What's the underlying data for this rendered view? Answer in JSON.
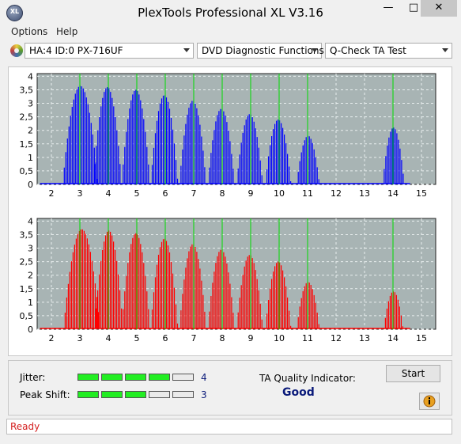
{
  "window": {
    "title": "PlexTools Professional XL V3.16",
    "icon_text": "XL",
    "controls": [
      "minimize-icon",
      "maximize-icon",
      "close-icon"
    ]
  },
  "menu": [
    "Options",
    "Help"
  ],
  "selectors": {
    "drive": "HA:4 ID:0  PX-716UF",
    "function": "DVD Diagnostic Functions",
    "test": "Q-Check TA Test"
  },
  "charts_colors": {
    "upper": "#0000ff",
    "lower": "#ff0000",
    "peak_lines": "#00dd00",
    "plot_bg": "#a8b4b4"
  },
  "chart_data": [
    {
      "type": "bar",
      "name": "upper",
      "x_ticks": [
        "2",
        "3",
        "4",
        "5",
        "6",
        "7",
        "8",
        "9",
        "10",
        "11",
        "12",
        "13",
        "14",
        "15"
      ],
      "y_ticks": [
        "4",
        "3,5",
        "3",
        "2,5",
        "2",
        "1,5",
        "1",
        "0,5",
        "0"
      ],
      "xlim": [
        1.5,
        15.5
      ],
      "ylim": [
        0,
        4.1
      ],
      "grid": true,
      "peaks": [
        3,
        4,
        5,
        6,
        7,
        8,
        9,
        10,
        11,
        14
      ],
      "lumps": [
        {
          "c": 3.0,
          "h": 3.65,
          "w": 0.62
        },
        {
          "c": 3.95,
          "h": 3.6,
          "w": 0.5
        },
        {
          "c": 4.95,
          "h": 3.5,
          "w": 0.5
        },
        {
          "c": 5.95,
          "h": 3.3,
          "w": 0.48
        },
        {
          "c": 6.95,
          "h": 3.1,
          "w": 0.47
        },
        {
          "c": 7.95,
          "h": 2.8,
          "w": 0.47
        },
        {
          "c": 8.95,
          "h": 2.6,
          "w": 0.46
        },
        {
          "c": 9.95,
          "h": 2.4,
          "w": 0.45
        },
        {
          "c": 11.0,
          "h": 1.8,
          "w": 0.4
        },
        {
          "c": 14.0,
          "h": 2.1,
          "w": 0.38
        }
      ]
    },
    {
      "type": "bar",
      "name": "lower",
      "x_ticks": [
        "2",
        "3",
        "4",
        "5",
        "6",
        "7",
        "8",
        "9",
        "10",
        "11",
        "12",
        "13",
        "14",
        "15"
      ],
      "y_ticks": [
        "4",
        "3,5",
        "3",
        "2,5",
        "2",
        "1,5",
        "1",
        "0,5",
        "0"
      ],
      "xlim": [
        1.5,
        15.5
      ],
      "ylim": [
        0,
        4.1
      ],
      "grid": true,
      "peaks": [
        3,
        4,
        5,
        6,
        7,
        8,
        9,
        10,
        11,
        14
      ],
      "lumps": [
        {
          "c": 3.05,
          "h": 3.7,
          "w": 0.64
        },
        {
          "c": 4.0,
          "h": 3.65,
          "w": 0.5
        },
        {
          "c": 4.95,
          "h": 3.55,
          "w": 0.5
        },
        {
          "c": 5.95,
          "h": 3.35,
          "w": 0.48
        },
        {
          "c": 6.95,
          "h": 3.15,
          "w": 0.47
        },
        {
          "c": 7.95,
          "h": 2.95,
          "w": 0.47
        },
        {
          "c": 8.95,
          "h": 2.75,
          "w": 0.46
        },
        {
          "c": 9.95,
          "h": 2.5,
          "w": 0.45
        },
        {
          "c": 11.0,
          "h": 1.75,
          "w": 0.4
        },
        {
          "c": 14.0,
          "h": 1.4,
          "w": 0.34
        }
      ]
    }
  ],
  "metrics": {
    "jitter": {
      "label": "Jitter:",
      "value": "4",
      "level": 4,
      "max": 5
    },
    "peak_shift": {
      "label": "Peak Shift:",
      "value": "3",
      "level": 3,
      "max": 5
    }
  },
  "ta": {
    "label": "TA Quality Indicator:",
    "result": "Good"
  },
  "buttons": {
    "start": "Start",
    "info_icon": "info-icon"
  },
  "status": "Ready"
}
